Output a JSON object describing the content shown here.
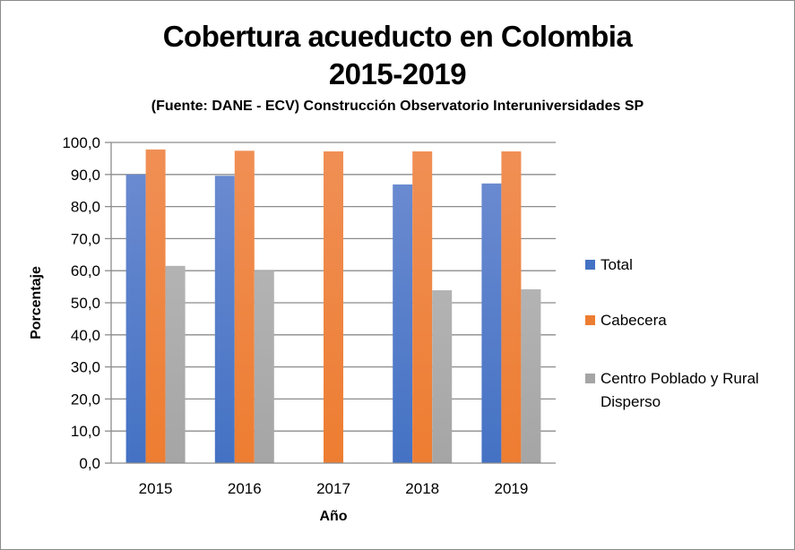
{
  "chart_data": {
    "type": "bar",
    "title": "Cobertura acueducto en Colombia",
    "title_line2": "2015-2019",
    "subtitle": "(Fuente: DANE - ECV) Construcción Observatorio Interuniversidades SP",
    "xlabel": "Año",
    "ylabel": "Porcentaje",
    "ylim": [
      0,
      100
    ],
    "yticks": [
      "0,0",
      "10,0",
      "20,0",
      "30,0",
      "40,0",
      "50,0",
      "60,0",
      "70,0",
      "80,0",
      "90,0",
      "100,0"
    ],
    "ytick_values": [
      0,
      10,
      20,
      30,
      40,
      50,
      60,
      70,
      80,
      90,
      100
    ],
    "grid": true,
    "legend_position": "right",
    "categories": [
      "2015",
      "2016",
      "2017",
      "2018",
      "2019"
    ],
    "series": [
      {
        "name": "Total",
        "color": "#4472c4",
        "color_light": "#6a8ad0",
        "values": [
          90.0,
          89.6,
          null,
          86.9,
          87.2
        ]
      },
      {
        "name": "Cabecera",
        "color": "#ed7d31",
        "color_light": "#f08f55",
        "values": [
          97.8,
          97.4,
          97.2,
          97.2,
          97.2
        ]
      },
      {
        "name": "Centro Poblado y Rural",
        "name_line2": "Disperso",
        "color": "#a5a5a5",
        "color_light": "#b3b3b3",
        "values": [
          61.5,
          60.0,
          null,
          53.9,
          54.2
        ]
      }
    ]
  }
}
